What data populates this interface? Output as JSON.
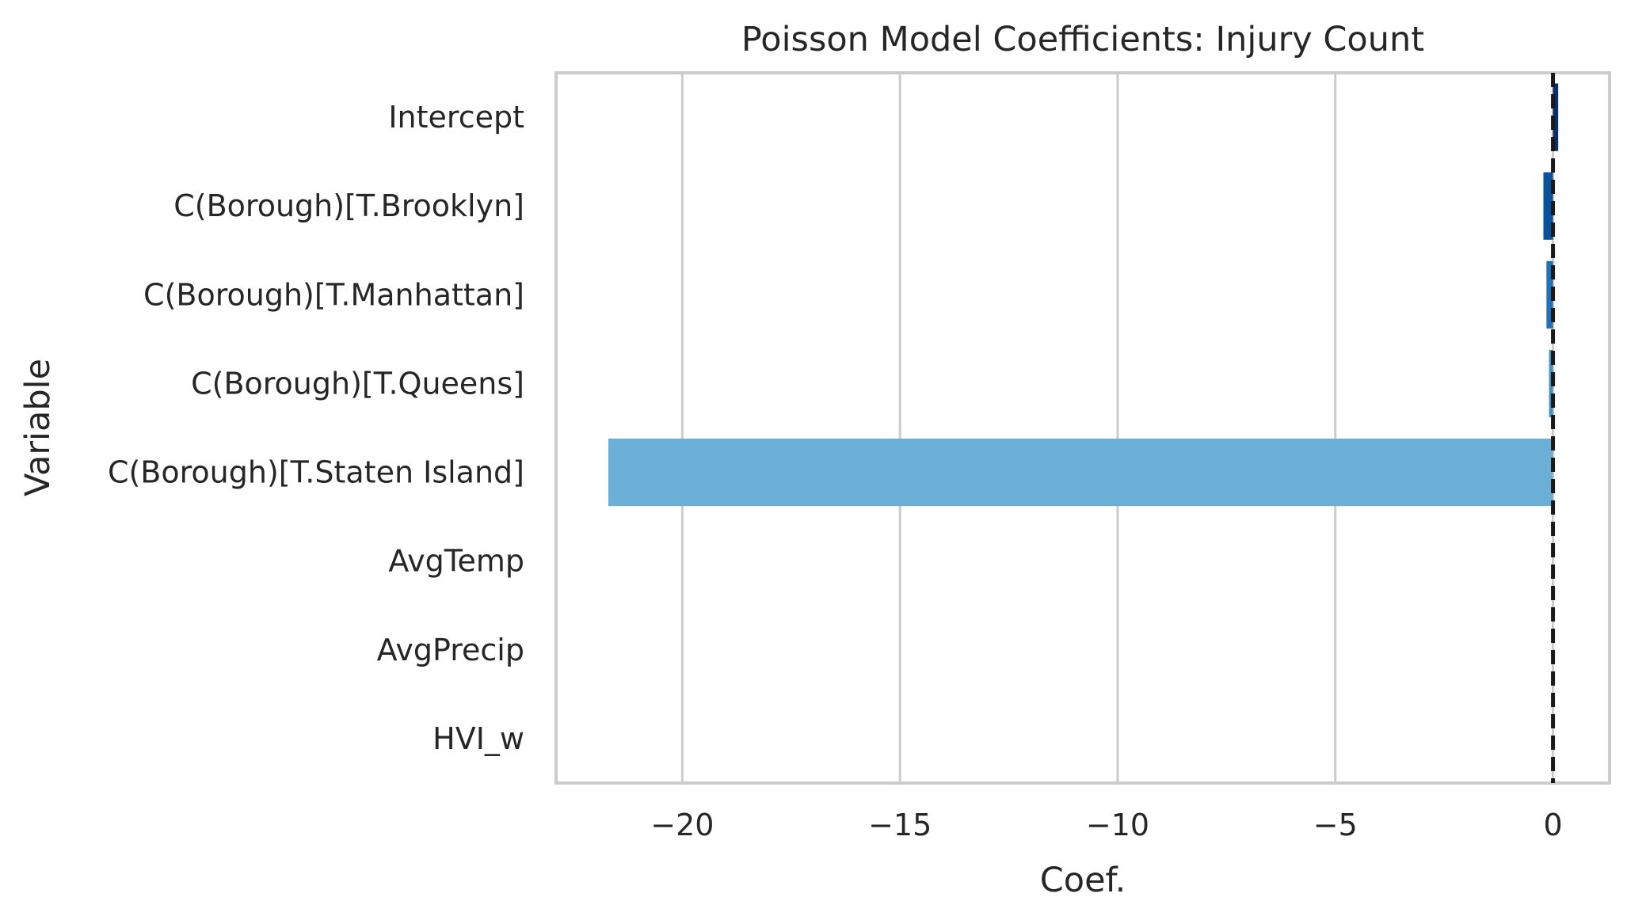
{
  "chart_data": {
    "type": "bar",
    "orientation": "horizontal",
    "title": "Poisson Model Coefficients: Injury Count",
    "xlabel": "Coef.",
    "ylabel": "Variable",
    "categories": [
      "Intercept",
      "C(Borough)[T.Brooklyn]",
      "C(Borough)[T.Manhattan]",
      "C(Borough)[T.Queens]",
      "C(Borough)[T.Staten Island]",
      "AvgTemp",
      "AvgPrecip",
      "HVI_w"
    ],
    "values": [
      0.12,
      -0.22,
      -0.15,
      -0.09,
      -21.7,
      0.0,
      0.0,
      0.0
    ],
    "bar_colors": [
      "#08306b",
      "#08519c",
      "#2171b5",
      "#4292c6",
      "#6baed6",
      "#9ecae1",
      "#c6dbef",
      "#deebf7"
    ],
    "xlim": [
      -22.9,
      1.3
    ],
    "xticks": [
      -20,
      -15,
      -10,
      -5,
      0
    ],
    "xtick_labels": [
      "−20",
      "−15",
      "−10",
      "−5",
      "0"
    ],
    "reference_line": {
      "x": 0,
      "style": "dashed",
      "color": "#1a1a1a"
    },
    "grid": "vertical",
    "legend": "none"
  }
}
